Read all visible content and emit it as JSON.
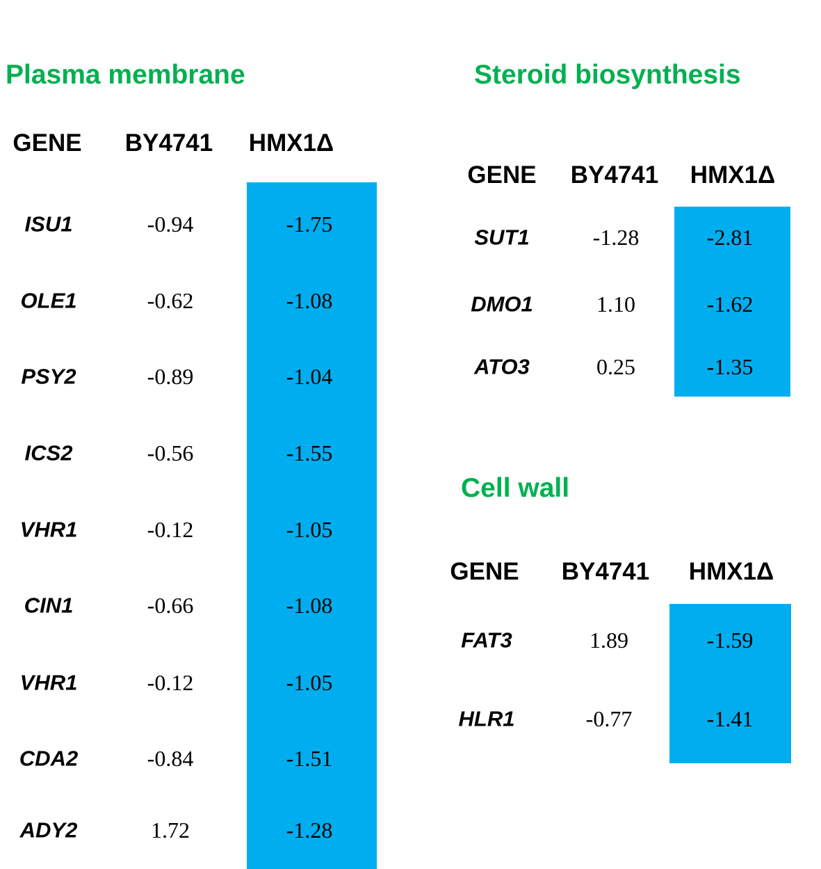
{
  "figure": {
    "colors": {
      "section_title_green": "#00B050",
      "highlight_blue": "#00AEEF",
      "text_black": "#000000"
    },
    "tables": [
      {
        "title": "Plasma membrane",
        "columns": [
          "GENE",
          "BY4741",
          "HMX1Δ"
        ],
        "highlighted_column": "HMX1Δ",
        "rows": [
          {
            "gene": "ISU1",
            "by4741": "-0.94",
            "hmx1d": "-1.75"
          },
          {
            "gene": "OLE1",
            "by4741": "-0.62",
            "hmx1d": "-1.08"
          },
          {
            "gene": "PSY2",
            "by4741": "-0.89",
            "hmx1d": "-1.04"
          },
          {
            "gene": "ICS2",
            "by4741": "-0.56",
            "hmx1d": "-1.55"
          },
          {
            "gene": "VHR1",
            "by4741": "-0.12",
            "hmx1d": "-1.05"
          },
          {
            "gene": "CIN1",
            "by4741": "-0.66",
            "hmx1d": "-1.08"
          },
          {
            "gene": "VHR1",
            "by4741": "-0.12",
            "hmx1d": "-1.05"
          },
          {
            "gene": "CDA2",
            "by4741": "-0.84",
            "hmx1d": "-1.51"
          },
          {
            "gene": "ADY2",
            "by4741": "1.72",
            "hmx1d": "-1.28"
          }
        ]
      },
      {
        "title": "Steroid biosynthesis",
        "columns": [
          "GENE",
          "BY4741",
          "HMX1Δ"
        ],
        "highlighted_column": "HMX1Δ",
        "rows": [
          {
            "gene": "SUT1",
            "by4741": "-1.28",
            "hmx1d": "-2.81"
          },
          {
            "gene": "DMO1",
            "by4741": "1.10",
            "hmx1d": "-1.62"
          },
          {
            "gene": "ATO3",
            "by4741": "0.25",
            "hmx1d": "-1.35"
          }
        ]
      },
      {
        "title": "Cell wall",
        "columns": [
          "GENE",
          "BY4741",
          "HMX1Δ"
        ],
        "highlighted_column": "HMX1Δ",
        "rows": [
          {
            "gene": "FAT3",
            "by4741": "1.89",
            "hmx1d": "-1.59"
          },
          {
            "gene": "HLR1",
            "by4741": "-0.77",
            "hmx1d": "-1.41"
          }
        ]
      }
    ]
  }
}
